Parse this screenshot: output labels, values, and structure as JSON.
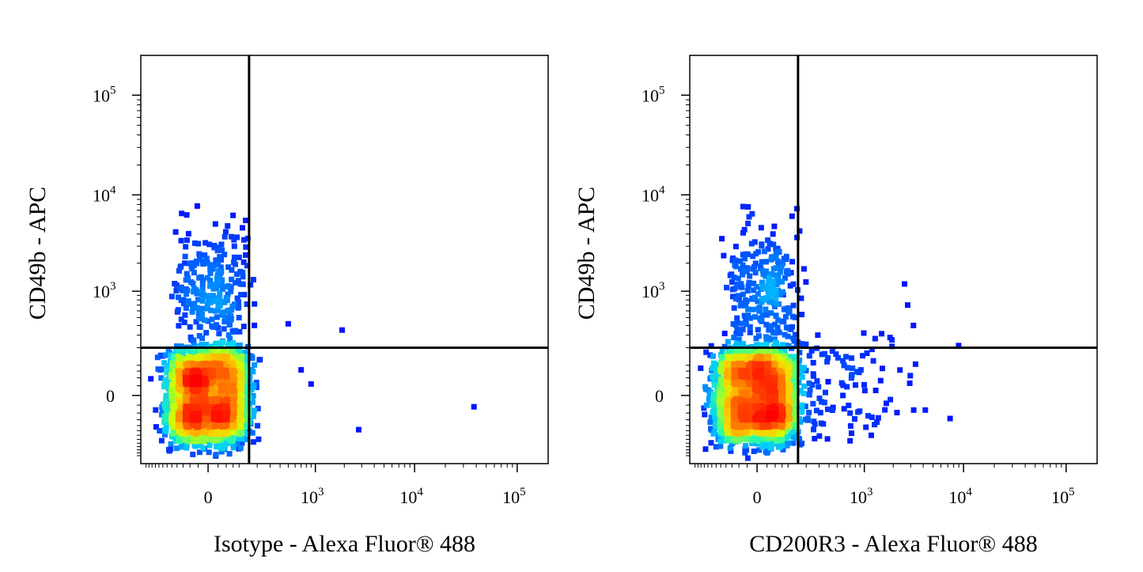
{
  "chart_data": [
    {
      "type": "scatter",
      "subtype": "flow-cytometry-density-dot-plot",
      "xlabel": "Isotype - Alexa Fluor® 488",
      "ylabel": "CD49b - APC",
      "x_scale": "biexponential",
      "y_scale": "biexponential",
      "x_ticks": [
        {
          "value": 0,
          "base": "0",
          "exp": ""
        },
        {
          "value": 1000,
          "base": "10",
          "exp": "3"
        },
        {
          "value": 10000,
          "base": "10",
          "exp": "4"
        },
        {
          "value": 100000,
          "base": "10",
          "exp": "5"
        }
      ],
      "y_ticks": [
        {
          "value": 0,
          "base": "0",
          "exp": ""
        },
        {
          "value": 1000,
          "base": "10",
          "exp": "3"
        },
        {
          "value": 10000,
          "base": "10",
          "exp": "4"
        },
        {
          "value": 100000,
          "base": "10",
          "exp": "5"
        }
      ],
      "quadrant_gate": {
        "x": 150,
        "y": 200
      },
      "populations": [
        {
          "name": "main",
          "x_center": 0,
          "y_center": 0,
          "x_spread": 70,
          "y_spread": 90,
          "count": 2600
        },
        {
          "name": "CD49b-high",
          "x_center": 20,
          "y_center": 1000,
          "x_spread": 60,
          "y_spread_log": 0.6,
          "count": 260
        }
      ],
      "outliers": [
        [
          38000,
          -30
        ],
        [
          2800,
          -120
        ],
        [
          1900,
          350
        ],
        [
          500,
          420
        ],
        [
          700,
          80
        ],
        [
          900,
          30
        ]
      ],
      "density_colors": [
        "#0000ff",
        "#0066ff",
        "#00ccff",
        "#33ff99",
        "#ccff00",
        "#ffcc00",
        "#ff6600",
        "#ff0000"
      ],
      "gate_color": "#000000"
    },
    {
      "type": "scatter",
      "subtype": "flow-cytometry-density-dot-plot",
      "xlabel": "CD200R3 - Alexa Fluor® 488",
      "ylabel": "CD49b - APC",
      "x_scale": "biexponential",
      "y_scale": "biexponential",
      "x_ticks": [
        {
          "value": 0,
          "base": "0",
          "exp": ""
        },
        {
          "value": 1000,
          "base": "10",
          "exp": "3"
        },
        {
          "value": 10000,
          "base": "10",
          "exp": "4"
        },
        {
          "value": 100000,
          "base": "10",
          "exp": "5"
        }
      ],
      "y_ticks": [
        {
          "value": 0,
          "base": "0",
          "exp": ""
        },
        {
          "value": 1000,
          "base": "10",
          "exp": "3"
        },
        {
          "value": 10000,
          "base": "10",
          "exp": "4"
        },
        {
          "value": 100000,
          "base": "10",
          "exp": "5"
        }
      ],
      "quadrant_gate": {
        "x": 150,
        "y": 200
      },
      "populations": [
        {
          "name": "main",
          "x_center": 0,
          "y_center": 0,
          "x_spread": 70,
          "y_spread": 90,
          "count": 2600
        },
        {
          "name": "CD49b-high",
          "x_center": 20,
          "y_center": 1000,
          "x_spread": 60,
          "y_spread_log": 0.6,
          "count": 260
        },
        {
          "name": "CD200R3-positive",
          "x_center": 450,
          "y_center": 40,
          "x_spread_log": 0.5,
          "y_spread": 120,
          "count": 120
        }
      ],
      "outliers": [
        [
          2600,
          1200
        ],
        [
          2800,
          700
        ],
        [
          3200,
          400
        ],
        [
          4200,
          -40
        ],
        [
          1700,
          -20
        ],
        [
          1100,
          -60
        ],
        [
          700,
          -50
        ]
      ],
      "density_colors": [
        "#0000ff",
        "#0066ff",
        "#00ccff",
        "#33ff99",
        "#ccff00",
        "#ffcc00",
        "#ff6600",
        "#ff0000"
      ],
      "gate_color": "#000000"
    }
  ]
}
